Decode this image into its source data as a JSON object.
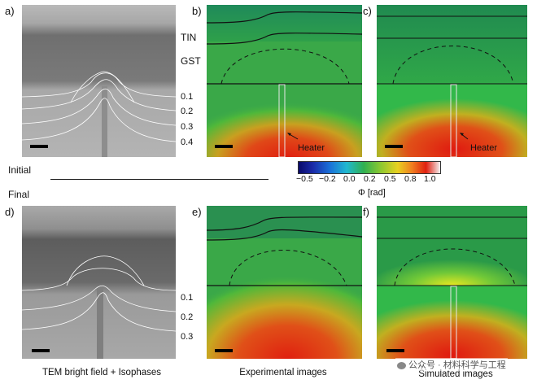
{
  "panel_labels": [
    "a)",
    "b)",
    "c)",
    "d)",
    "e)",
    "f)"
  ],
  "layer_labels": {
    "tin": "TIN",
    "gst": "GST"
  },
  "isophase_top": [
    "0.1",
    "0.2",
    "0.3",
    "0.4"
  ],
  "isophase_bottom": [
    "0.1",
    "0.2",
    "0.3"
  ],
  "heater_label": "Heater",
  "state_initial": "Initial",
  "state_final": "Final",
  "colorbar": {
    "ticks": [
      "−0.5",
      "−0.2",
      "0.0",
      "0.2",
      "0.5",
      "0.8",
      "1.0"
    ],
    "unit": "Φ [rad]"
  },
  "captions": {
    "tem": "TEM bright field + Isophases",
    "experimental": "Experimental images",
    "simulated": "Simulated images"
  },
  "watermark": "公众号 · 材料科学与工程"
}
